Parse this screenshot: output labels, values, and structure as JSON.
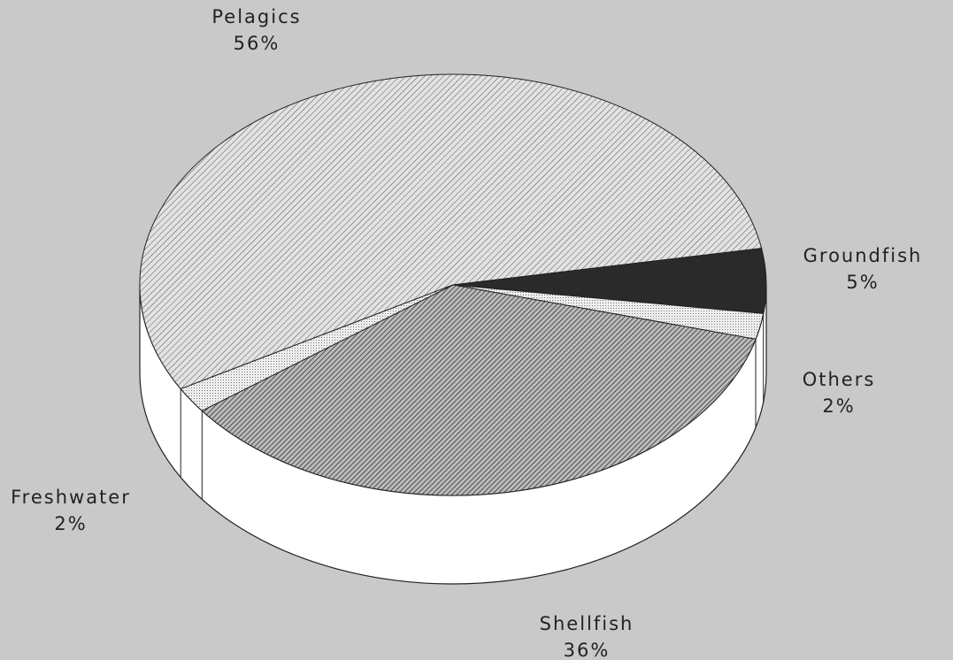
{
  "chart_data": {
    "type": "pie",
    "categories": [
      "Pelagics",
      "Groundfish",
      "Others",
      "Shellfish",
      "Freshwater"
    ],
    "values": [
      56,
      5,
      2,
      36,
      2
    ],
    "value_labels": [
      "56%",
      "5%",
      "2%",
      "36%",
      "2%"
    ],
    "colors": [
      "#d8d8d8",
      "#2a2a2a",
      "#e6e6e6",
      "#8a8a8a",
      "#e9e9e9"
    ]
  }
}
